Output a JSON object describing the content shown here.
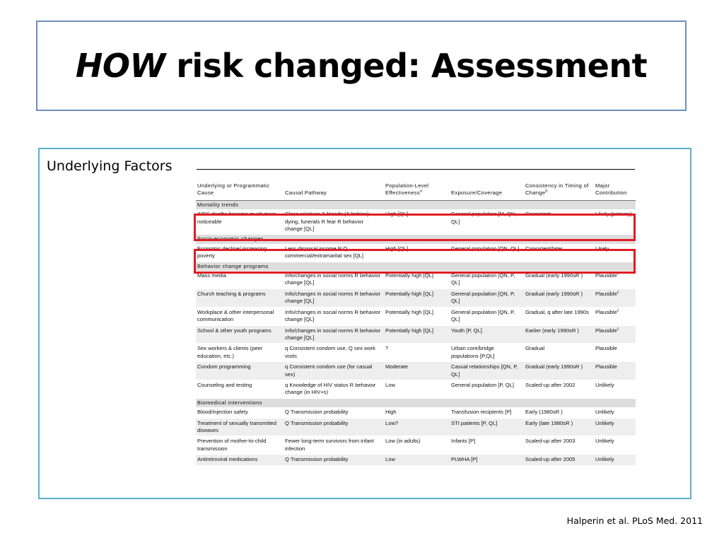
{
  "slide": {
    "title_emphasis": "HOW",
    "title_rest": " risk changed: Assessment",
    "subtitle": "Underlying Factors",
    "citation": "Halperin et al. PLoS Med. 2011"
  },
  "table": {
    "headers": [
      {
        "text": "Underlying or Programmatic Cause",
        "sup": ""
      },
      {
        "text": "Causal Pathway",
        "sup": ""
      },
      {
        "text": "Population-Level Effectiveness",
        "sup": "a"
      },
      {
        "text": "Exposure/Coverage",
        "sup": ""
      },
      {
        "text": "Consistency in Timing of Change",
        "sup": "b"
      },
      {
        "text": "Major Contribution",
        "sup": ""
      }
    ],
    "sections": [
      {
        "title": "Mortality trends",
        "rows": [
          [
            "AIDS deaths became much more noticeable",
            "Close relatives & friends (& babies) dying, funerals R fear R behavior change [QL]",
            "High [QL]",
            "General population [M, QN, QL]",
            "Consistent",
            "Likely (primary)"
          ]
        ]
      },
      {
        "title": "Socio-economic changes",
        "rows": [
          [
            "Economic decline/ increasing poverty",
            "Less disposal income R Q commercial/extramarital sex [QL]",
            "High [QL]",
            "General population [QN, QL]",
            "Consistent/later",
            "Likely"
          ]
        ]
      },
      {
        "title": "Behavior change programs",
        "rows": [
          [
            "Mass media",
            "Info/changes in social norms R behavior change [QL]",
            "Potentially high [QL]",
            "General population [QN, P, QL]",
            "Gradual (early 1990sR )",
            "Plausible|c"
          ],
          [
            "Church teaching & programs",
            "Info/changes in social norms R behavior change [QL]",
            "Potentially high [QL]",
            "General population [QN, P, QL]",
            "Gradual (early 1990sR )",
            "Plausible|c"
          ],
          [
            "Workplace & other interpersonal communication",
            "Info/changes in social norms R behavior change [QL]",
            "Potentially high [QL]",
            "General population [QN, P, QL]",
            "Gradual, q after late 1990s",
            "Plausible|c"
          ],
          [
            "School & other youth programs",
            "Info/changes in social norms R behavior change [QL]",
            "Potentially high [QL]",
            "Youth [P, QL]",
            "Earlier (early 1990sR )",
            "Plausible|c"
          ],
          [
            "Sex workers & clients (peer education, etc.)",
            "q Consistent condom use, Q sex work visits",
            "?",
            "Urban core/bridge populations [P,QL]",
            "Gradual",
            "Plausible"
          ],
          [
            "Condom programming",
            "q Consistent condom use (for casual sex)",
            "Moderate",
            "Casual relationships [QN, P, QL]",
            "Gradual (early 1990sR )",
            "Plausible"
          ],
          [
            "Counseling and testing",
            "q Knowledge of HIV status R behavior change (in HIV+s)",
            "Low",
            "General population [P, QL]",
            "Scaled-up after 2002",
            "Unlikely"
          ]
        ]
      },
      {
        "title": "Biomedical interventions",
        "rows": [
          [
            "Blood/injection safety",
            "Q Transmission probability",
            "High",
            "Transfusion recipients [P]",
            "Early (1980sR )",
            "Unlikely"
          ],
          [
            "Treatment of sexually transmitted diseases",
            "Q Transmission probability",
            "Low?",
            "STI patients [P, QL]",
            "Early (late 1980sR )",
            "Unlikely"
          ],
          [
            "Prevention of mother-to-child transmission",
            "Fewer long-term survivors from infant infection",
            "Low (in adults)",
            "Infants [P]",
            "Scaled-up after 2003",
            "Unlikely"
          ],
          [
            "Antiretroviral medications",
            "Q Transmission probability",
            "Low",
            "PLWHA [P]",
            "Scaled-up after 2005",
            "Unlikely"
          ]
        ]
      }
    ]
  }
}
